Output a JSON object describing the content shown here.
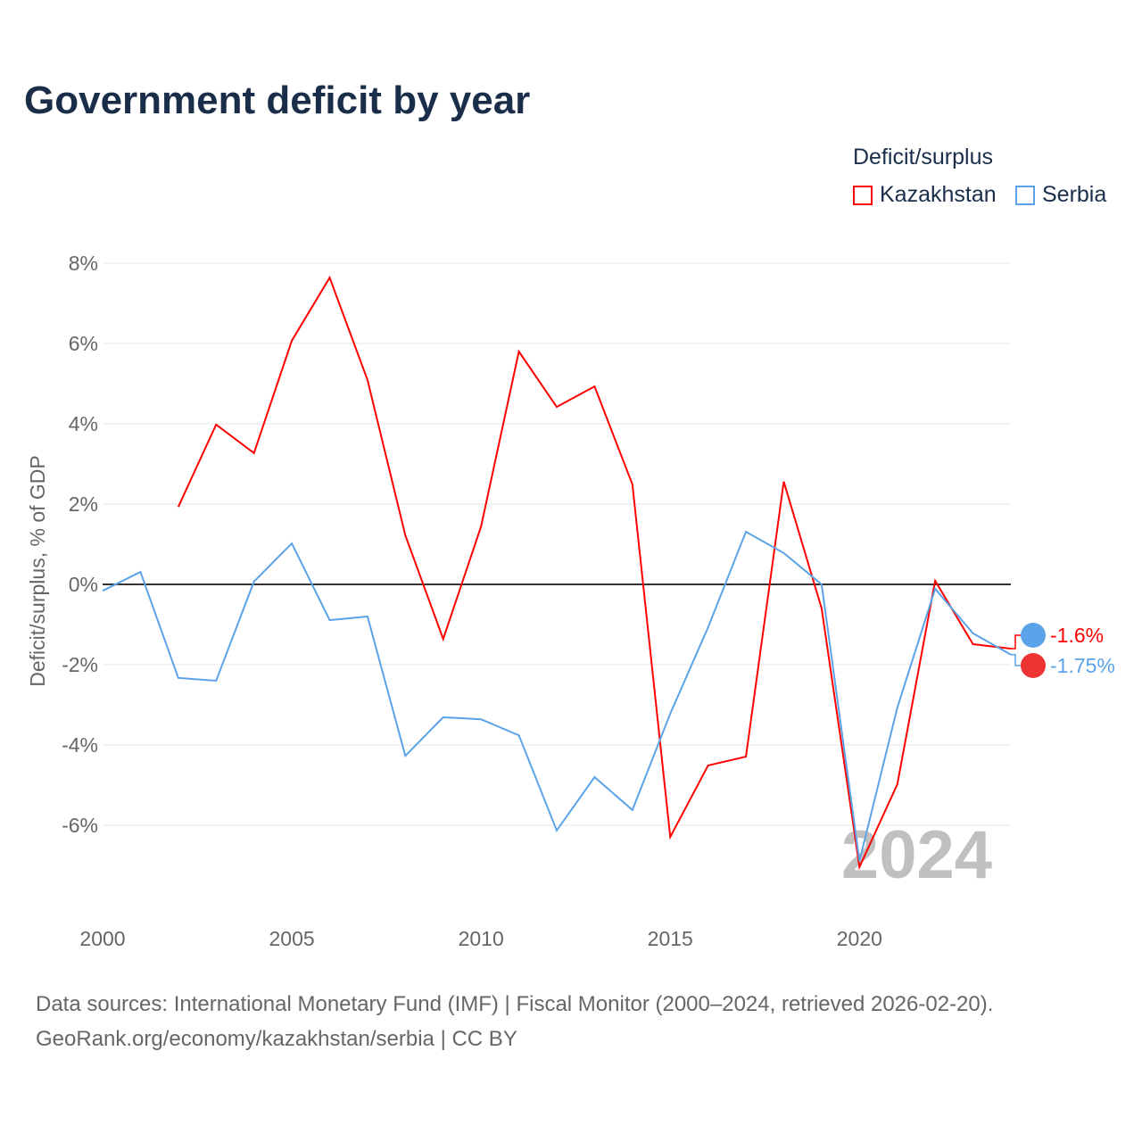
{
  "title": "Government deficit by year",
  "legend": {
    "title": "Deficit/surplus",
    "items": [
      "Kazakhstan",
      "Serbia"
    ]
  },
  "footer": [
    "Data sources: International Monetary Fund (IMF) | Fiscal Monitor (2000–2024, retrieved 2026-02-20).",
    "GeoRank.org/economy/kazakhstan/serbia | CC BY"
  ],
  "chart_data": {
    "type": "line",
    "title": "Government deficit by year",
    "xlabel": "",
    "ylabel": "Deficit/surplus, % of GDP",
    "xlim": [
      2000,
      2024
    ],
    "ylim": [
      -8,
      8.5
    ],
    "yticks": [
      8,
      6,
      4,
      2,
      0,
      -2,
      -4,
      -6
    ],
    "ytick_labels": [
      "8%",
      "6%",
      "4%",
      "2%",
      "0%",
      "-2%",
      "-4%",
      "-6%"
    ],
    "xticks": [
      2000,
      2005,
      2010,
      2015,
      2020
    ],
    "watermark_year": "2024",
    "series": [
      {
        "name": "Kazakhstan",
        "color": "#ff0000",
        "end_label": "-1.6%",
        "x": [
          2002,
          2003,
          2004,
          2005,
          2006,
          2007,
          2008,
          2009,
          2010,
          2011,
          2012,
          2013,
          2014,
          2015,
          2016,
          2017,
          2018,
          2019,
          2020,
          2021,
          2022,
          2023,
          2024
        ],
        "values": [
          1.93,
          3.98,
          3.27,
          6.07,
          7.64,
          5.09,
          1.22,
          -1.36,
          1.44,
          5.8,
          4.42,
          4.93,
          2.49,
          -6.29,
          -4.51,
          -4.29,
          2.56,
          -0.6,
          -7.04,
          -4.98,
          0.09,
          -1.49,
          -1.6
        ]
      },
      {
        "name": "Serbia",
        "color": "#5ba3e8",
        "end_label": "-1.75%",
        "x": [
          2000,
          2001,
          2002,
          2003,
          2004,
          2005,
          2006,
          2007,
          2008,
          2009,
          2010,
          2011,
          2012,
          2013,
          2014,
          2015,
          2016,
          2017,
          2018,
          2019,
          2020,
          2021,
          2022,
          2023,
          2024
        ],
        "values": [
          -0.16,
          0.31,
          -2.33,
          -2.4,
          0.07,
          1.02,
          -0.89,
          -0.8,
          -4.27,
          -3.31,
          -3.36,
          -3.76,
          -6.13,
          -4.8,
          -5.62,
          -3.22,
          -1.07,
          1.31,
          0.78,
          0,
          -6.89,
          -3.07,
          -0.11,
          -1.22,
          -1.75
        ]
      }
    ]
  }
}
